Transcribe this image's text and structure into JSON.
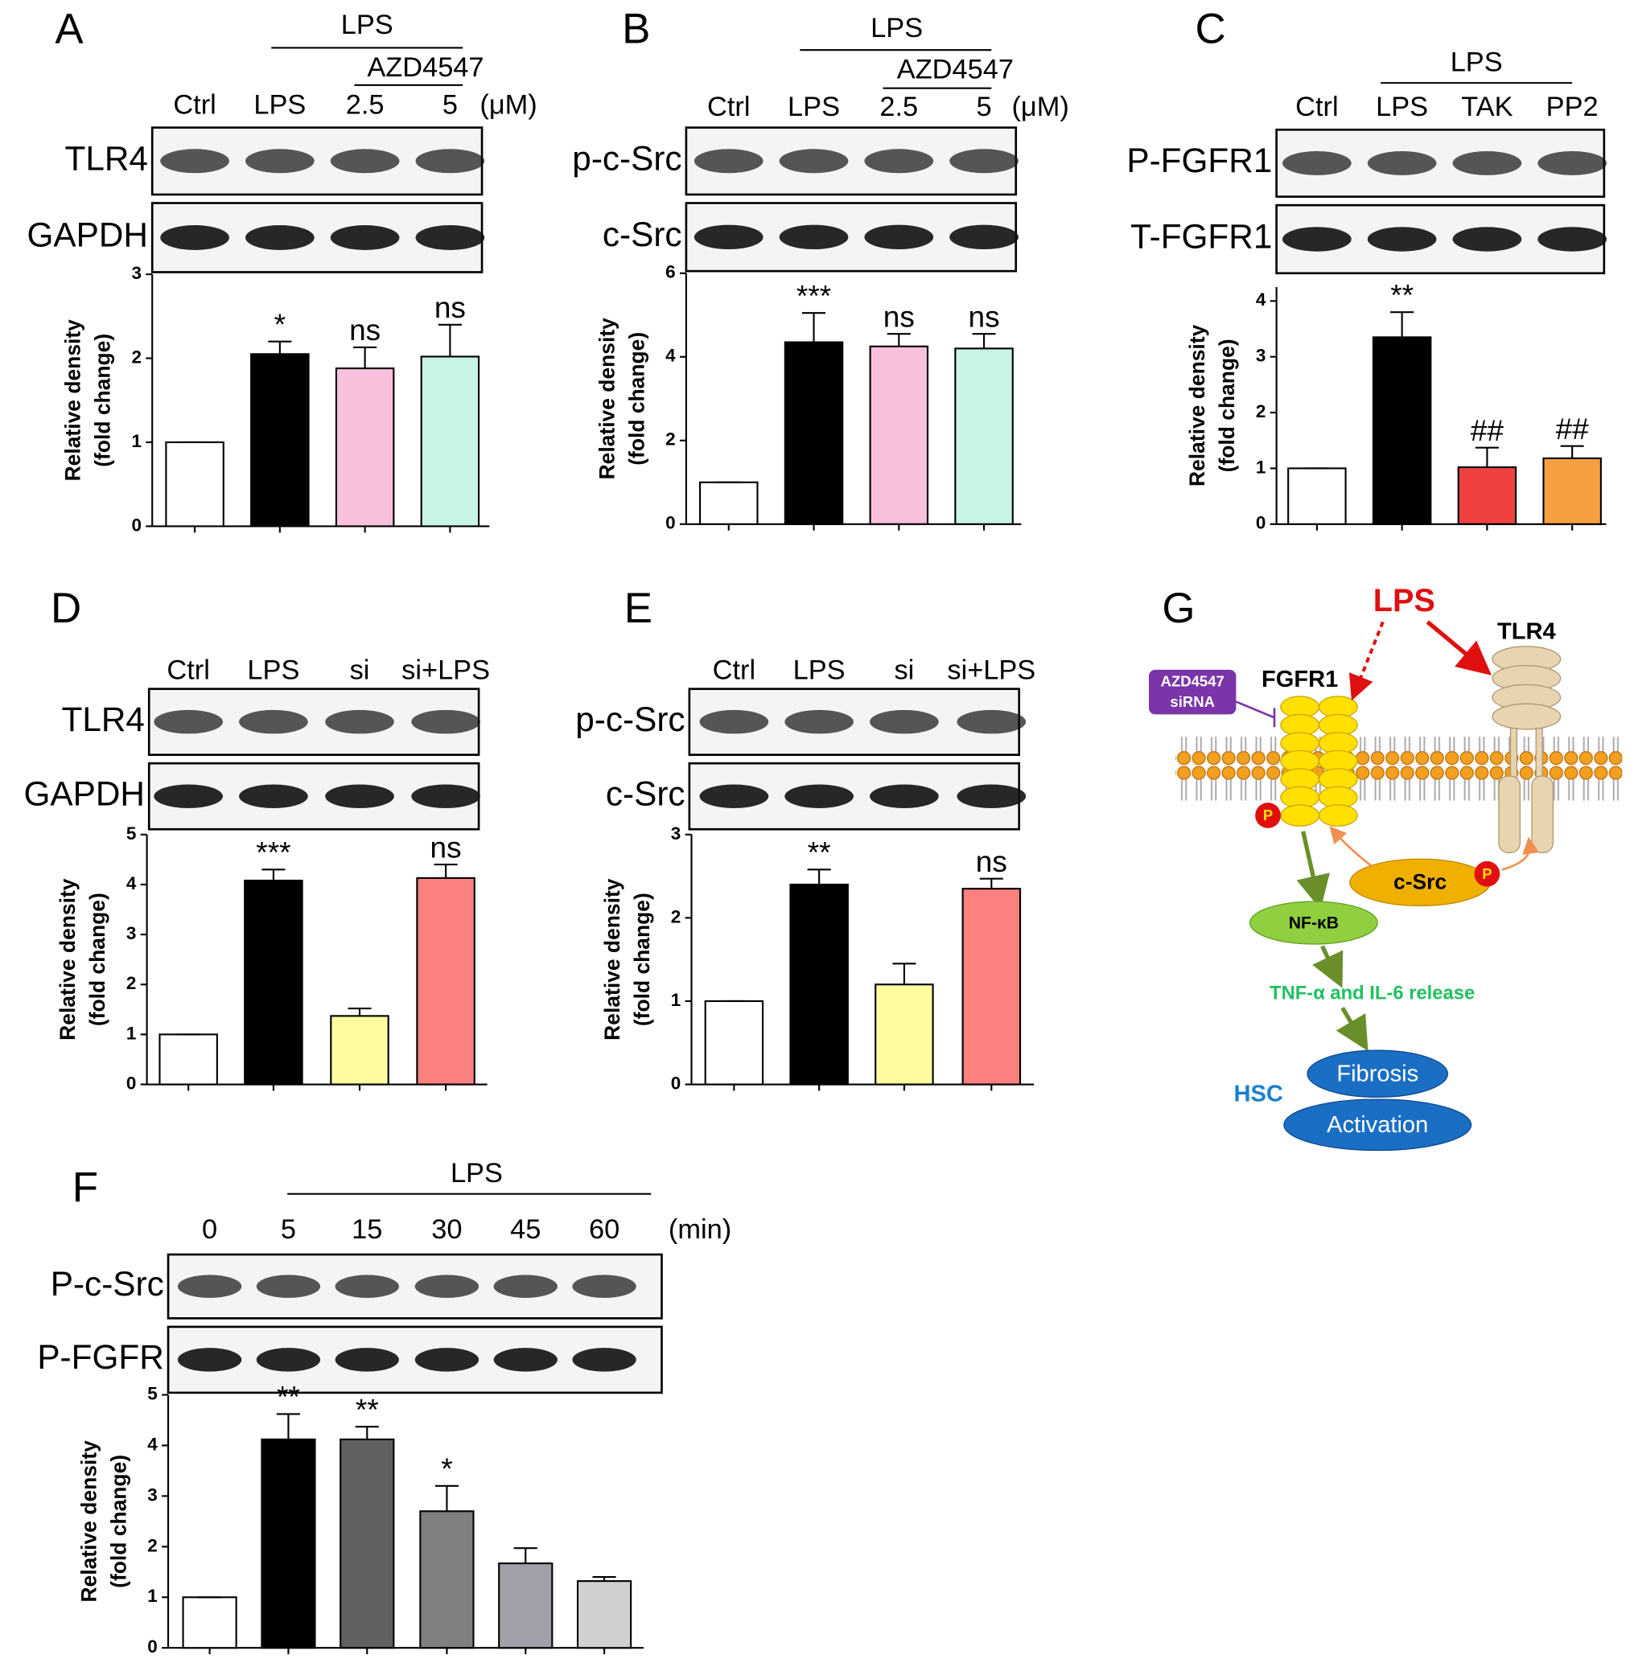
{
  "chart_data": [
    {
      "type": "bar",
      "panel": "A",
      "headers": [
        "LPS",
        "AZD4547"
      ],
      "unit_label": "(μM)",
      "categories": [
        "Ctrl",
        "LPS",
        "2.5",
        "5"
      ],
      "blots": [
        "TLR4",
        "GAPDH"
      ],
      "ylabel": [
        "Relative density",
        "(fold change)"
      ],
      "values": [
        1,
        2.05,
        1.88,
        2.02
      ],
      "errors": [
        0,
        0.15,
        0.25,
        0.38
      ],
      "annotations": [
        null,
        "*",
        "ns",
        "ns"
      ],
      "colors": [
        "#ffffff",
        "#000000",
        "#f9c0dc",
        "#c8f5e6"
      ],
      "ylim": [
        0,
        3
      ],
      "yticks": [
        0,
        1,
        2,
        3
      ]
    },
    {
      "type": "bar",
      "panel": "B",
      "headers": [
        "LPS",
        "AZD4547"
      ],
      "unit_label": "(μM)",
      "categories": [
        "Ctrl",
        "LPS",
        "2.5",
        "5"
      ],
      "blots": [
        "p-c-Src",
        "c-Src"
      ],
      "ylabel": [
        "Relative density",
        "(fold change)"
      ],
      "values": [
        1,
        4.35,
        4.25,
        4.2
      ],
      "errors": [
        0,
        0.7,
        0.3,
        0.35
      ],
      "annotations": [
        null,
        "***",
        "ns",
        "ns"
      ],
      "colors": [
        "#ffffff",
        "#000000",
        "#f9c0dc",
        "#c8f5e6"
      ],
      "ylim": [
        0,
        6
      ],
      "yticks": [
        0,
        2,
        4,
        6
      ]
    },
    {
      "type": "bar",
      "panel": "C",
      "headers": [
        "LPS"
      ],
      "categories": [
        "Ctrl",
        "LPS",
        "TAK",
        "PP2"
      ],
      "blots": [
        "P-FGFR1",
        "T-FGFR1"
      ],
      "ylabel": [
        "Relative density",
        "(fold change)"
      ],
      "values": [
        1,
        3.35,
        1.02,
        1.18
      ],
      "errors": [
        0,
        0.45,
        0.35,
        0.22
      ],
      "annotations": [
        null,
        "**",
        "##",
        "##"
      ],
      "colors": [
        "#ffffff",
        "#000000",
        "#f04040",
        "#f5a040"
      ],
      "ylim": [
        0,
        4.25
      ],
      "yticks": [
        0,
        1,
        2,
        3,
        4
      ]
    },
    {
      "type": "bar",
      "panel": "D",
      "categories": [
        "Ctrl",
        "LPS",
        "si",
        "si+LPS"
      ],
      "blots": [
        "TLR4",
        "GAPDH"
      ],
      "ylabel": [
        "Relative density",
        "(fold change)"
      ],
      "values": [
        1,
        4.08,
        1.37,
        4.13
      ],
      "errors": [
        0,
        0.22,
        0.15,
        0.27
      ],
      "annotations": [
        null,
        "***",
        null,
        "ns"
      ],
      "colors": [
        "#ffffff",
        "#000000",
        "#fdfda0",
        "#fb8080"
      ],
      "ylim": [
        0,
        5
      ],
      "yticks": [
        0,
        1,
        2,
        3,
        4,
        5
      ]
    },
    {
      "type": "bar",
      "panel": "E",
      "categories": [
        "Ctrl",
        "LPS",
        "si",
        "si+LPS"
      ],
      "blots": [
        "p-c-Src",
        "c-Src"
      ],
      "ylabel": [
        "Relative density",
        "(fold change)"
      ],
      "values": [
        1,
        2.4,
        1.2,
        2.35
      ],
      "errors": [
        0,
        0.18,
        0.25,
        0.12
      ],
      "annotations": [
        null,
        "**",
        null,
        "ns"
      ],
      "colors": [
        "#ffffff",
        "#000000",
        "#fdfda0",
        "#fb8080"
      ],
      "ylim": [
        0,
        3
      ],
      "yticks": [
        0,
        1,
        2,
        3
      ]
    },
    {
      "type": "bar",
      "panel": "F",
      "headers": [
        "LPS"
      ],
      "unit_label": "(min)",
      "categories": [
        "0",
        "5",
        "15",
        "30",
        "45",
        "60"
      ],
      "blots": [
        "P-c-Src",
        "P-FGFR"
      ],
      "ylabel": [
        "Relative density",
        "(fold change)"
      ],
      "values": [
        1,
        4.12,
        4.12,
        2.7,
        1.67,
        1.32
      ],
      "errors": [
        0,
        0.5,
        0.25,
        0.5,
        0.3,
        0.08
      ],
      "annotations": [
        null,
        "**",
        "**",
        "*",
        null,
        null
      ],
      "colors": [
        "#ffffff",
        "#000000",
        "#606060",
        "#808080",
        "#a0a0a8",
        "#d0d0d0"
      ],
      "ylim": [
        0,
        5
      ],
      "yticks": [
        0,
        1,
        2,
        3,
        4,
        5
      ]
    }
  ],
  "diagram": {
    "panel": "G",
    "stimulus": "LPS",
    "receptor1": "FGFR1",
    "receptor2": "TLR4",
    "inhibitor": [
      "AZD4547",
      "siRNA"
    ],
    "kinase": "c-Src",
    "phospho": [
      "P",
      "P"
    ],
    "factor": "NF-κB",
    "release": "TNF-α and IL-6 release",
    "cell": "HSC",
    "outcome": [
      "Fibrosis",
      "Activation"
    ]
  }
}
